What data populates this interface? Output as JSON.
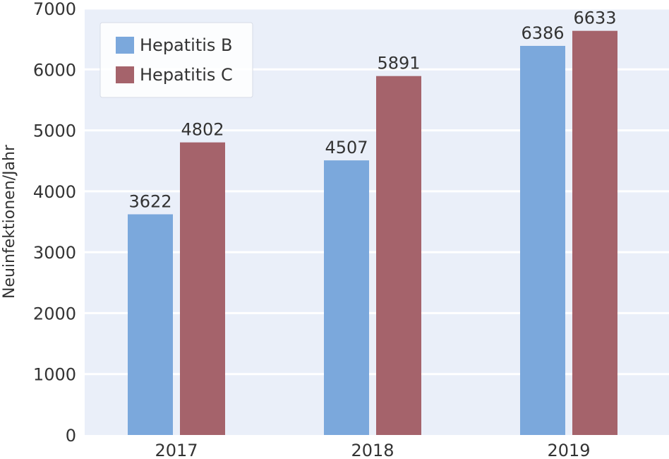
{
  "chart_data": {
    "type": "bar",
    "title": "",
    "xlabel": "",
    "ylabel": "Neuinfektionen/Jahr",
    "categories": [
      "2017",
      "2018",
      "2019"
    ],
    "series": [
      {
        "name": "Hepatitis B",
        "values": [
          3622,
          4507,
          6386
        ],
        "color": "#7ba8dc"
      },
      {
        "name": "Hepatitis C",
        "values": [
          4802,
          5891,
          6633
        ],
        "color": "#a5636b"
      }
    ],
    "ylim": [
      0,
      7000
    ],
    "yticks": [
      0,
      1000,
      2000,
      3000,
      4000,
      5000,
      6000,
      7000
    ],
    "grid": true,
    "legend_position": "top-left",
    "colors": {
      "plot_background": "#eaeff9",
      "grid": "#ffffff",
      "text": "#333333"
    }
  }
}
